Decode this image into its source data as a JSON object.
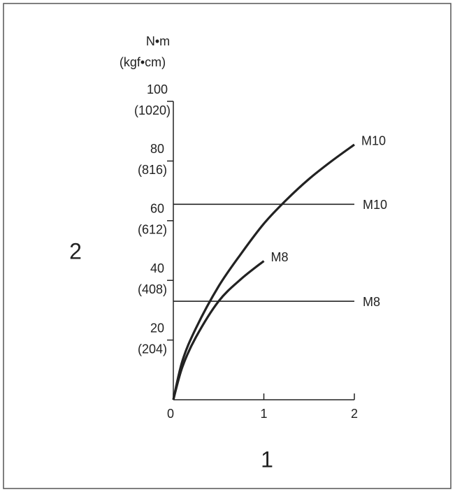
{
  "chart_data": {
    "type": "line",
    "y_axis_unit": "N•m",
    "y2_axis_unit": "(kgf•cm)",
    "ylabel": "2",
    "xlabel": "1",
    "xlim": [
      0,
      2
    ],
    "xticks": [
      0,
      1,
      2
    ],
    "ylim": [
      0,
      100
    ],
    "yticks": [
      20,
      40,
      60,
      80,
      100
    ],
    "y2lim": [
      0,
      1020
    ],
    "y2ticks": [
      {
        "value": 204,
        "label": "(204)"
      },
      {
        "value": 408,
        "label": "(408)"
      },
      {
        "value": 612,
        "label": "(612)"
      },
      {
        "value": 816,
        "label": "(816)"
      },
      {
        "value": 1020,
        "label": "(1020)"
      }
    ],
    "series": [
      {
        "name": "M10",
        "color": "#222222",
        "style": "curve",
        "x": [
          0,
          0.1,
          0.25,
          0.5,
          0.75,
          1,
          1.25,
          1.5,
          1.75,
          2
        ],
        "values": [
          0,
          13,
          24,
          38,
          49,
          59,
          67,
          74,
          80,
          85.5
        ]
      },
      {
        "name": "M10",
        "color": "#222222",
        "style": "straight",
        "x": [
          0,
          2
        ],
        "values": [
          65.5,
          65.5
        ]
      },
      {
        "name": "M8",
        "color": "#222222",
        "style": "curve",
        "x": [
          0,
          0.1,
          0.25,
          0.5,
          0.75,
          1
        ],
        "values": [
          0,
          11,
          21,
          33,
          40.5,
          46.5
        ]
      },
      {
        "name": "M8",
        "color": "#222222",
        "style": "straight",
        "x": [
          0,
          2
        ],
        "values": [
          33,
          33
        ]
      }
    ]
  }
}
